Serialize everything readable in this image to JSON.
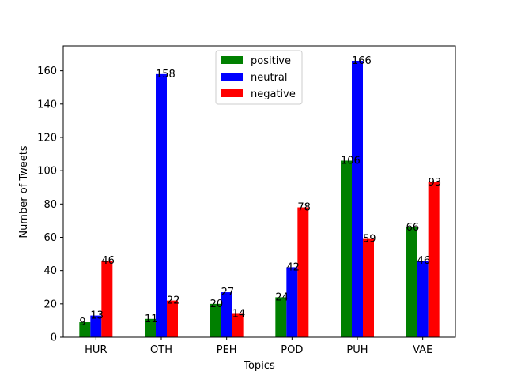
{
  "chart_data": {
    "type": "bar",
    "title": "",
    "xlabel": "Topics",
    "ylabel": "Number of Tweets",
    "categories": [
      "HUR",
      "OTH",
      "PEH",
      "POD",
      "PUH",
      "VAE"
    ],
    "ylim": [
      0,
      175
    ],
    "yticks": [
      0,
      20,
      40,
      60,
      80,
      100,
      120,
      140,
      160
    ],
    "grid": false,
    "legend_position": "top-center",
    "series": [
      {
        "name": "positive",
        "color": "#008000",
        "values": [
          9,
          11,
          20,
          24,
          106,
          66
        ]
      },
      {
        "name": "neutral",
        "color": "#0000ff",
        "values": [
          13,
          158,
          27,
          42,
          166,
          46
        ]
      },
      {
        "name": "negative",
        "color": "#ff0000",
        "values": [
          46,
          22,
          14,
          78,
          59,
          93
        ]
      }
    ]
  }
}
